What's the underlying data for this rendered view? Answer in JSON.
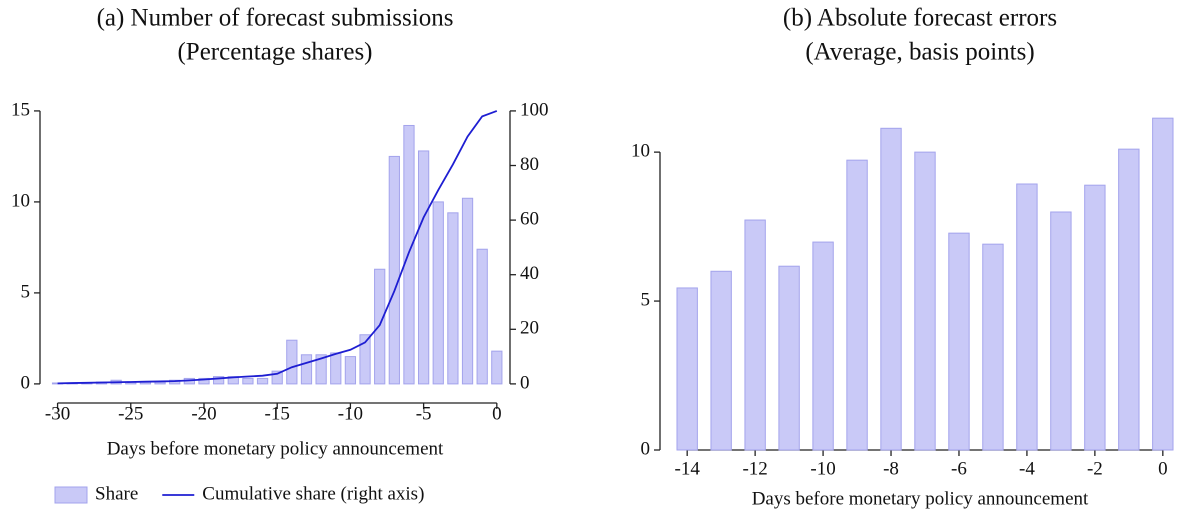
{
  "chart_data": [
    {
      "type": "bar",
      "title": "(a) Number of forecast submissions",
      "subtitle": "(Percentage shares)",
      "xlabel": "Days before monetary policy announcement",
      "x": [
        -30,
        -29,
        -28,
        -27,
        -26,
        -25,
        -24,
        -23,
        -22,
        -21,
        -20,
        -19,
        -18,
        -17,
        -16,
        -15,
        -14,
        -13,
        -12,
        -11,
        -10,
        -9,
        -8,
        -7,
        -6,
        -5,
        -4,
        -3,
        -2,
        -1,
        0
      ],
      "series": [
        {
          "name": "Share",
          "type": "bar",
          "color": "#c9c9f7",
          "values": [
            0.05,
            0.05,
            0.05,
            0.1,
            0.2,
            0.1,
            0.1,
            0.1,
            0.2,
            0.3,
            0.3,
            0.4,
            0.4,
            0.3,
            0.3,
            0.7,
            2.4,
            1.6,
            1.6,
            1.7,
            1.5,
            2.7,
            6.3,
            12.5,
            14.2,
            12.8,
            10.0,
            9.4,
            10.2,
            7.4,
            1.8
          ]
        },
        {
          "name": "Cumulative share (right axis)",
          "type": "line",
          "color": "#1e1ed2",
          "axis": "y2",
          "values": [
            0.2,
            0.3,
            0.4,
            0.5,
            0.6,
            0.7,
            0.8,
            0.9,
            1.0,
            1.3,
            1.6,
            2.0,
            2.4,
            2.7,
            3.0,
            3.7,
            6.1,
            7.7,
            9.3,
            11.0,
            12.5,
            15.2,
            21.5,
            34.0,
            48.2,
            61.0,
            71.0,
            80.4,
            90.6,
            98.0,
            100
          ]
        }
      ],
      "xlim": [
        -31.2,
        0.9
      ],
      "xticks": [
        -30,
        -25,
        -20,
        -15,
        -10,
        -5,
        0
      ],
      "ylim": [
        -1.05,
        15.6
      ],
      "yticks": [
        0,
        5,
        10,
        15
      ],
      "y2lim": [
        -7,
        104
      ],
      "y2ticks": [
        0,
        20,
        40,
        60,
        80,
        100
      ],
      "legend": "bottom"
    },
    {
      "type": "bar",
      "title": "(b) Absolute forecast errors",
      "subtitle": "(Average, basis points)",
      "xlabel": "Days before monetary policy announcement",
      "x": [
        -14,
        -13,
        -12,
        -11,
        -10,
        -9,
        -8,
        -7,
        -6,
        -5,
        -4,
        -3,
        -2,
        -1,
        0
      ],
      "series": [
        {
          "name": "Absolute forecast errors",
          "type": "bar",
          "color": "#c9c9f7",
          "values": [
            5.44,
            6.0,
            7.72,
            6.17,
            6.98,
            9.73,
            10.8,
            10.0,
            7.28,
            6.91,
            8.93,
            7.99,
            8.89,
            10.1,
            11.14
          ]
        }
      ],
      "xlim": [
        -14.8,
        0.8
      ],
      "xticks": [
        -14,
        -12,
        -10,
        -8,
        -6,
        -4,
        -2,
        0
      ],
      "ylim": [
        0,
        11.75
      ],
      "yticks": [
        0,
        5,
        10
      ]
    }
  ]
}
